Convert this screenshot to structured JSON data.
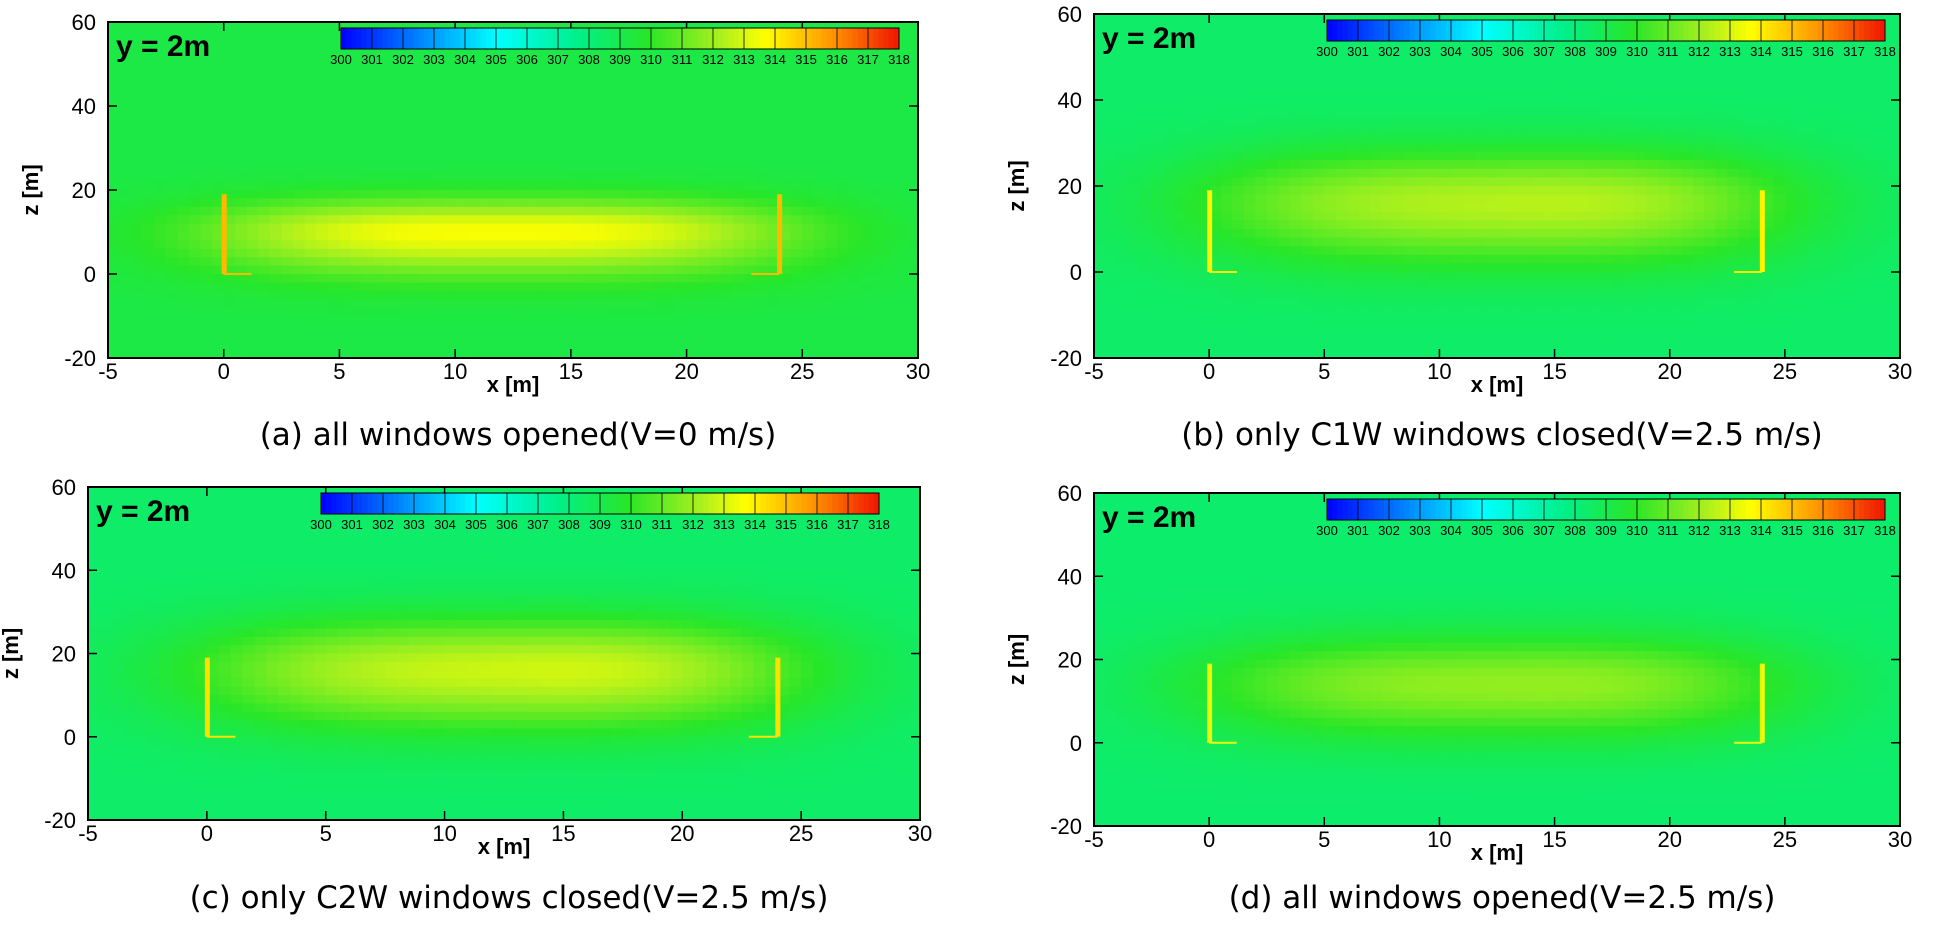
{
  "chart_data": [
    {
      "type": "heatmap",
      "caption": "(a) all windows opened(V=0 m/s)",
      "slice_label": "y = 2m",
      "xlabel": "x [m]",
      "ylabel": "z [m]",
      "xlim": [
        -5,
        30
      ],
      "ylim": [
        -20,
        60
      ],
      "xticks": [
        -5,
        0,
        5,
        10,
        15,
        20,
        25,
        30
      ],
      "yticks": [
        -20,
        0,
        20,
        40,
        60
      ],
      "colorbar": {
        "min": 300,
        "max": 318,
        "ticks": [
          300,
          301,
          302,
          303,
          304,
          305,
          306,
          307,
          308,
          309,
          310,
          311,
          312,
          313,
          314,
          315,
          316,
          317,
          318
        ]
      },
      "field": {
        "ambient": 309.2,
        "building_x": [
          0,
          24
        ],
        "building_z": [
          0,
          19
        ],
        "peak": 313.6,
        "core_z": 10,
        "plume_top_z": 22,
        "skew": 0
      }
    },
    {
      "type": "heatmap",
      "caption": "(b) only C1W windows closed(V=2.5 m/s)",
      "slice_label": "y = 2m",
      "xlabel": "x [m]",
      "ylabel": "z [m]",
      "xlim": [
        -5,
        30
      ],
      "ylim": [
        -20,
        60
      ],
      "xticks": [
        -5,
        0,
        5,
        10,
        15,
        20,
        25,
        30
      ],
      "yticks": [
        -20,
        0,
        20,
        40,
        60
      ],
      "colorbar": {
        "min": 300,
        "max": 318,
        "ticks": [
          300,
          301,
          302,
          303,
          304,
          305,
          306,
          307,
          308,
          309,
          310,
          311,
          312,
          313,
          314,
          315,
          316,
          317,
          318
        ]
      },
      "field": {
        "ambient": 308.4,
        "building_x": [
          0,
          24
        ],
        "building_z": [
          0,
          19
        ],
        "peak": 312.4,
        "core_z": 16,
        "plume_top_z": 35,
        "skew": 0.15
      }
    },
    {
      "type": "heatmap",
      "caption": "(c) only C2W windows closed(V=2.5 m/s)",
      "slice_label": "y = 2m",
      "xlabel": "x [m]",
      "ylabel": "z [m]",
      "xlim": [
        -5,
        30
      ],
      "ylim": [
        -20,
        60
      ],
      "xticks": [
        -5,
        0,
        5,
        10,
        15,
        20,
        25,
        30
      ],
      "yticks": [
        -20,
        0,
        20,
        40,
        60
      ],
      "colorbar": {
        "min": 300,
        "max": 318,
        "ticks": [
          300,
          301,
          302,
          303,
          304,
          305,
          306,
          307,
          308,
          309,
          310,
          311,
          312,
          313,
          314,
          315,
          316,
          317,
          318
        ]
      },
      "field": {
        "ambient": 308.4,
        "building_x": [
          0,
          24
        ],
        "building_z": [
          0,
          19
        ],
        "peak": 312.8,
        "core_z": 16,
        "plume_top_z": 35,
        "skew": 0.15
      }
    },
    {
      "type": "heatmap",
      "caption": "(d) all windows opened(V=2.5 m/s)",
      "slice_label": "y = 2m",
      "xlabel": "x [m]",
      "ylabel": "z [m]",
      "xlim": [
        -5,
        30
      ],
      "ylim": [
        -20,
        60
      ],
      "xticks": [
        -5,
        0,
        5,
        10,
        15,
        20,
        25,
        30
      ],
      "yticks": [
        -20,
        0,
        20,
        40,
        60
      ],
      "colorbar": {
        "min": 300,
        "max": 318,
        "ticks": [
          300,
          301,
          302,
          303,
          304,
          305,
          306,
          307,
          308,
          309,
          310,
          311,
          312,
          313,
          314,
          315,
          316,
          317,
          318
        ]
      },
      "field": {
        "ambient": 308.3,
        "building_x": [
          0,
          24
        ],
        "building_z": [
          0,
          19
        ],
        "peak": 311.8,
        "core_z": 14,
        "plume_top_z": 32,
        "skew": 0.12
      }
    }
  ]
}
